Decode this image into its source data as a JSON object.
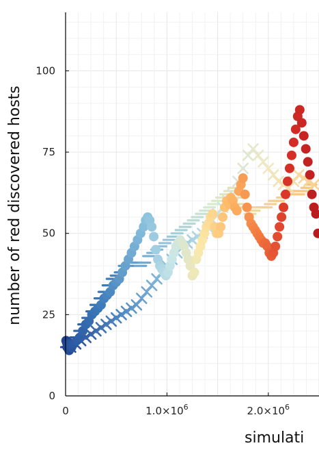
{
  "chart_data": {
    "type": "scatter",
    "title": "",
    "xlabel": "simulati",
    "ylabel": "number of red discovered hosts",
    "xlim": [
      0,
      2500000
    ],
    "ylim": [
      0,
      118
    ],
    "grid": true,
    "x_ticks": [
      {
        "value": 0,
        "label": "0"
      },
      {
        "value": 1000000,
        "label": "1.0×10",
        "exp": "6"
      },
      {
        "value": 2000000,
        "label": "2.0×10",
        "exp": "6"
      }
    ],
    "y_ticks": [
      {
        "value": 0,
        "label": "0"
      },
      {
        "value": 25,
        "label": "25"
      },
      {
        "value": 50,
        "label": "50"
      },
      {
        "value": 75,
        "label": "75"
      },
      {
        "value": 100,
        "label": "100"
      }
    ],
    "series": [
      {
        "marker": "dash",
        "colors": [
          "#2b4f9b",
          "#3f7fbd",
          "#8ec1dd",
          "#d8ecd0",
          "#f2d49a",
          "#f7c57f"
        ],
        "points": [
          [
            10000,
            15
          ],
          [
            30000,
            16
          ],
          [
            60000,
            17
          ],
          [
            100000,
            18
          ],
          [
            140000,
            20
          ],
          [
            180000,
            22
          ],
          [
            220000,
            24
          ],
          [
            260000,
            26
          ],
          [
            300000,
            28
          ],
          [
            340000,
            30
          ],
          [
            380000,
            32
          ],
          [
            420000,
            34
          ],
          [
            460000,
            36
          ],
          [
            500000,
            37
          ],
          [
            540000,
            38
          ],
          [
            580000,
            40
          ],
          [
            620000,
            40
          ],
          [
            660000,
            41
          ],
          [
            700000,
            41
          ],
          [
            740000,
            40
          ],
          [
            780000,
            41
          ],
          [
            820000,
            43
          ],
          [
            860000,
            44
          ],
          [
            900000,
            45
          ],
          [
            940000,
            46
          ],
          [
            980000,
            47
          ],
          [
            1020000,
            48
          ],
          [
            1060000,
            49
          ],
          [
            1100000,
            50
          ],
          [
            1140000,
            51
          ],
          [
            1180000,
            52
          ],
          [
            1220000,
            53
          ],
          [
            1260000,
            54
          ],
          [
            1300000,
            55
          ],
          [
            1340000,
            56
          ],
          [
            1380000,
            57
          ],
          [
            1420000,
            58
          ],
          [
            1460000,
            59
          ],
          [
            1500000,
            60
          ],
          [
            1540000,
            61
          ],
          [
            1580000,
            62
          ],
          [
            1620000,
            63
          ],
          [
            1660000,
            64
          ],
          [
            1700000,
            61
          ],
          [
            1740000,
            59
          ],
          [
            1780000,
            58
          ],
          [
            1820000,
            56
          ],
          [
            1860000,
            57
          ],
          [
            1900000,
            58
          ],
          [
            1940000,
            58
          ],
          [
            1980000,
            58
          ],
          [
            2020000,
            59
          ],
          [
            2060000,
            60
          ],
          [
            2100000,
            60
          ],
          [
            2140000,
            61
          ],
          [
            2180000,
            62
          ],
          [
            2220000,
            63
          ],
          [
            2260000,
            63
          ],
          [
            2300000,
            62
          ],
          [
            2340000,
            63
          ],
          [
            2380000,
            64
          ],
          [
            2420000,
            65
          ]
        ]
      },
      {
        "marker": "cross",
        "colors": [
          "#2a4a96",
          "#4c86c0",
          "#8cbfdd",
          "#c6e3e5",
          "#eee9c4",
          "#f9d393"
        ],
        "points": [
          [
            50000,
            15
          ],
          [
            100000,
            16
          ],
          [
            150000,
            17
          ],
          [
            200000,
            18
          ],
          [
            250000,
            19
          ],
          [
            300000,
            20
          ],
          [
            350000,
            21
          ],
          [
            400000,
            22
          ],
          [
            450000,
            23
          ],
          [
            500000,
            24
          ],
          [
            550000,
            25
          ],
          [
            600000,
            26
          ],
          [
            650000,
            27
          ],
          [
            700000,
            28
          ],
          [
            750000,
            30
          ],
          [
            800000,
            32
          ],
          [
            850000,
            34
          ],
          [
            900000,
            36
          ],
          [
            950000,
            38
          ],
          [
            1000000,
            40
          ],
          [
            1050000,
            42
          ],
          [
            1100000,
            44
          ],
          [
            1150000,
            46
          ],
          [
            1200000,
            47
          ],
          [
            1250000,
            48
          ],
          [
            1300000,
            49
          ],
          [
            1350000,
            50
          ],
          [
            1400000,
            52
          ],
          [
            1450000,
            54
          ],
          [
            1500000,
            56
          ],
          [
            1550000,
            58
          ],
          [
            1600000,
            60
          ],
          [
            1650000,
            62
          ],
          [
            1700000,
            66
          ],
          [
            1750000,
            70
          ],
          [
            1800000,
            74
          ],
          [
            1850000,
            76
          ],
          [
            1900000,
            74
          ],
          [
            1950000,
            72
          ],
          [
            2000000,
            70
          ],
          [
            2050000,
            68
          ],
          [
            2100000,
            66
          ],
          [
            2150000,
            65
          ],
          [
            2200000,
            64
          ],
          [
            2250000,
            66
          ],
          [
            2300000,
            68
          ],
          [
            2350000,
            67
          ],
          [
            2400000,
            66
          ],
          [
            2450000,
            65
          ]
        ]
      },
      {
        "marker": "circle",
        "colors": [
          "#1f4391",
          "#3b78b8",
          "#84bcdb",
          "#c9e6e8",
          "#fbe8a8",
          "#fdb867",
          "#f2793f",
          "#d73027",
          "#b81b1f"
        ],
        "points": [
          [
            5000,
            17
          ],
          [
            15000,
            15
          ],
          [
            25000,
            16
          ],
          [
            35000,
            14
          ],
          [
            45000,
            16
          ],
          [
            60000,
            15
          ],
          [
            80000,
            16
          ],
          [
            110000,
            17
          ],
          [
            140000,
            18
          ],
          [
            170000,
            20
          ],
          [
            200000,
            22
          ],
          [
            230000,
            23
          ],
          [
            260000,
            25
          ],
          [
            290000,
            26
          ],
          [
            320000,
            27
          ],
          [
            350000,
            28
          ],
          [
            380000,
            30
          ],
          [
            410000,
            31
          ],
          [
            440000,
            32
          ],
          [
            470000,
            34
          ],
          [
            500000,
            35
          ],
          [
            530000,
            36
          ],
          [
            560000,
            38
          ],
          [
            590000,
            40
          ],
          [
            620000,
            42
          ],
          [
            650000,
            44
          ],
          [
            680000,
            46
          ],
          [
            710000,
            48
          ],
          [
            740000,
            50
          ],
          [
            770000,
            52
          ],
          [
            790000,
            54
          ],
          [
            810000,
            55
          ],
          [
            830000,
            54
          ],
          [
            850000,
            52
          ],
          [
            870000,
            49
          ],
          [
            890000,
            45
          ],
          [
            910000,
            42
          ],
          [
            930000,
            40
          ],
          [
            950000,
            39
          ],
          [
            970000,
            38
          ],
          [
            990000,
            37
          ],
          [
            1010000,
            38
          ],
          [
            1030000,
            40
          ],
          [
            1050000,
            42
          ],
          [
            1070000,
            44
          ],
          [
            1090000,
            46
          ],
          [
            1110000,
            47
          ],
          [
            1130000,
            48
          ],
          [
            1150000,
            47
          ],
          [
            1170000,
            46
          ],
          [
            1190000,
            44
          ],
          [
            1210000,
            42
          ],
          [
            1230000,
            40
          ],
          [
            1250000,
            37
          ],
          [
            1270000,
            38
          ],
          [
            1290000,
            42
          ],
          [
            1310000,
            44
          ],
          [
            1330000,
            46
          ],
          [
            1350000,
            48
          ],
          [
            1370000,
            50
          ],
          [
            1390000,
            52
          ],
          [
            1410000,
            53
          ],
          [
            1430000,
            55
          ],
          [
            1450000,
            56
          ],
          [
            1470000,
            52
          ],
          [
            1490000,
            50
          ],
          [
            1510000,
            50
          ],
          [
            1530000,
            52
          ],
          [
            1550000,
            55
          ],
          [
            1570000,
            58
          ],
          [
            1590000,
            60
          ],
          [
            1610000,
            59
          ],
          [
            1630000,
            61
          ],
          [
            1650000,
            60
          ],
          [
            1670000,
            58
          ],
          [
            1690000,
            57
          ],
          [
            1710000,
            63
          ],
          [
            1730000,
            65
          ],
          [
            1750000,
            67
          ],
          [
            1770000,
            62
          ],
          [
            1790000,
            58
          ],
          [
            1810000,
            55
          ],
          [
            1830000,
            53
          ],
          [
            1850000,
            52
          ],
          [
            1870000,
            51
          ],
          [
            1890000,
            50
          ],
          [
            1910000,
            49
          ],
          [
            1930000,
            48
          ],
          [
            1950000,
            47
          ],
          [
            1970000,
            47
          ],
          [
            1990000,
            46
          ],
          [
            2010000,
            44
          ],
          [
            2030000,
            43
          ],
          [
            2050000,
            44
          ],
          [
            2070000,
            46
          ],
          [
            2090000,
            49
          ],
          [
            2110000,
            52
          ],
          [
            2130000,
            55
          ],
          [
            2150000,
            58
          ],
          [
            2170000,
            62
          ],
          [
            2190000,
            66
          ],
          [
            2210000,
            70
          ],
          [
            2230000,
            74
          ],
          [
            2250000,
            78
          ],
          [
            2270000,
            82
          ],
          [
            2290000,
            86
          ],
          [
            2310000,
            88
          ],
          [
            2330000,
            84
          ],
          [
            2350000,
            80
          ],
          [
            2370000,
            76
          ],
          [
            2390000,
            72
          ],
          [
            2410000,
            68
          ],
          [
            2430000,
            62
          ],
          [
            2450000,
            58
          ],
          [
            2470000,
            56
          ],
          [
            2490000,
            50
          ]
        ]
      }
    ]
  }
}
